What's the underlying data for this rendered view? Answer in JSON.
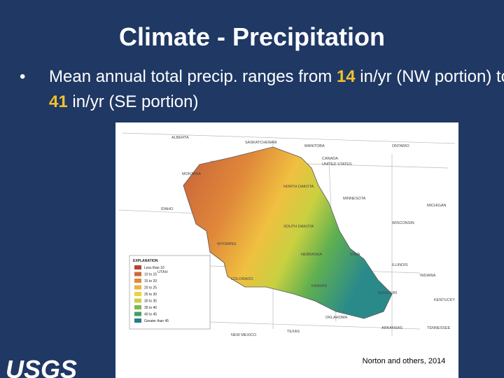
{
  "slide": {
    "title": "Climate - Precipitation",
    "bullet": [
      "Mean annual total precip. ranges from ",
      "14",
      " in/yr (NW portion) to ",
      "41",
      " in/yr (SE portion)"
    ],
    "map": {
      "labels": [
        "ALBERTA",
        "SASKATCHEWAN",
        "MANITOBA",
        "ONTARIO",
        "CANADA",
        "UNITED STATES",
        "NORTH DAKOTA",
        "MINNESOTA",
        "SOUTH DAKOTA",
        "WISCONSIN",
        "MICHIGAN",
        "IOWA",
        "NEBRASKA",
        "ILLINOIS",
        "INDIANA",
        "KANSAS",
        "MISSOURI",
        "KENTUCKY",
        "OKLAHOMA",
        "ARKANSAS",
        "TENNESSEE",
        "TEXAS",
        "NEW MEXICO",
        "COLORADO",
        "WYOMING",
        "IDAHO",
        "MONTANA",
        "UTAH"
      ],
      "legend_title": "EXPLANATION",
      "legend_items": [
        "Less than 10",
        "10 to 15",
        "15 to 20",
        "20 to 25",
        "25 to 30",
        "30 to 35",
        "35 to 40",
        "40 to 45",
        "Greater than 45"
      ],
      "credit": "Norton and others, 2014"
    },
    "logo": "USGS"
  }
}
